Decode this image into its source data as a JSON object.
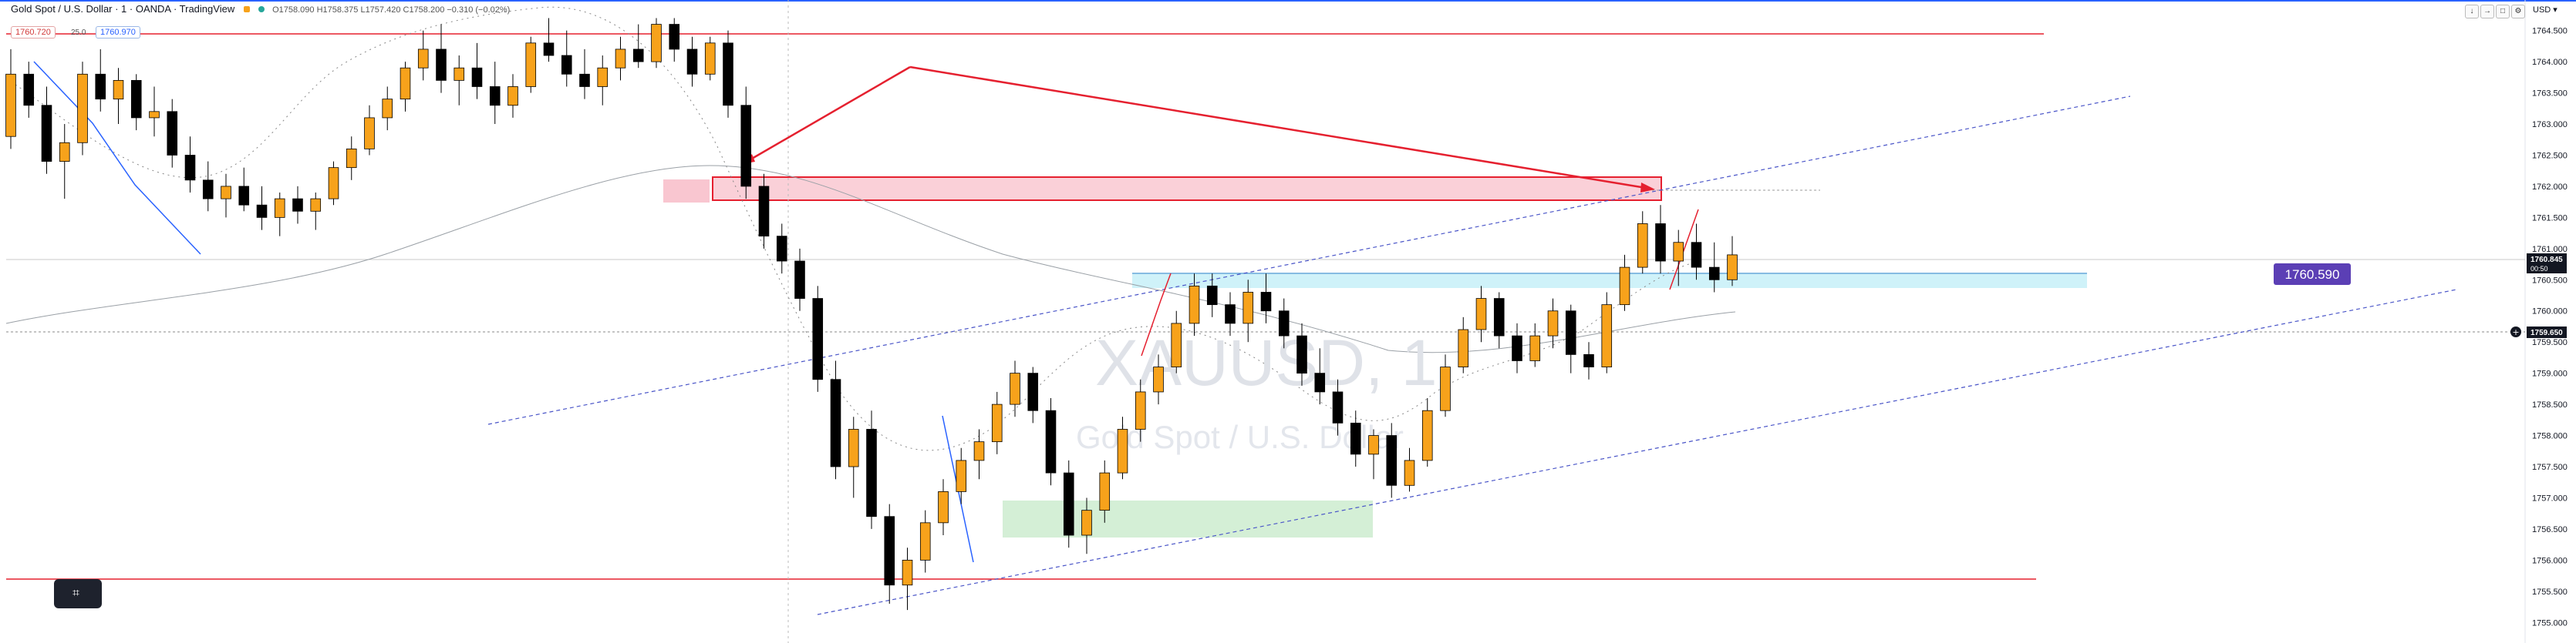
{
  "header": {
    "symbol": "Gold Spot / U.S. Dollar · 1 · OANDA · TradingView",
    "ohlc": "O1758.090 H1758.375 L1757.420 C1758.200 −0.310 (−0.02%)"
  },
  "trade_panel": {
    "sell_price": "1760.720",
    "spread": "25.0",
    "buy_price": "1760.970"
  },
  "currency": "USD",
  "watermark": {
    "ticker": "XAUUSD, 1",
    "name": "Gold Spot / U.S. Dollar"
  },
  "price_labels": {
    "current_price": "1760.845",
    "countdown": "00:50",
    "crosshair_price": "1759.650",
    "level_label": "1760.590"
  },
  "colors": {
    "bull_candle": "#f7a21b",
    "bear_candle": "#000000",
    "resistance": "#e5202f",
    "support_zone": "#b9eef7",
    "demand_zone": "#c8eccb",
    "supply_fill": "#f9c6d0",
    "channel": "#4a55c8",
    "label_bg": "#5b3fb5"
  },
  "chart_data": {
    "type": "candlestick",
    "yaxis": {
      "ticks": [
        "1764.500",
        "1764.000",
        "1763.500",
        "1763.000",
        "1762.500",
        "1762.000",
        "1761.500",
        "1761.000",
        "1760.500",
        "1760.000",
        "1759.500",
        "1759.000",
        "1758.500",
        "1758.000",
        "1757.500",
        "1757.000",
        "1756.500",
        "1756.000",
        "1755.500",
        "1755.000"
      ],
      "min": 1754.88,
      "max": 1764.78
    },
    "candles": [
      [
        1762.8,
        1764.2,
        1762.6,
        1763.8
      ],
      [
        1763.8,
        1764.0,
        1763.1,
        1763.3
      ],
      [
        1763.3,
        1763.6,
        1762.2,
        1762.4
      ],
      [
        1762.4,
        1763.0,
        1761.8,
        1762.7
      ],
      [
        1762.7,
        1764.0,
        1762.5,
        1763.8
      ],
      [
        1763.8,
        1764.2,
        1763.2,
        1763.4
      ],
      [
        1763.4,
        1763.9,
        1763.0,
        1763.7
      ],
      [
        1763.7,
        1763.8,
        1762.9,
        1763.1
      ],
      [
        1763.1,
        1763.6,
        1762.8,
        1763.2
      ],
      [
        1763.2,
        1763.4,
        1762.3,
        1762.5
      ],
      [
        1762.5,
        1762.8,
        1761.9,
        1762.1
      ],
      [
        1762.1,
        1762.4,
        1761.6,
        1761.8
      ],
      [
        1761.8,
        1762.2,
        1761.5,
        1762.0
      ],
      [
        1762.0,
        1762.3,
        1761.6,
        1761.7
      ],
      [
        1761.7,
        1762.0,
        1761.3,
        1761.5
      ],
      [
        1761.5,
        1761.9,
        1761.2,
        1761.8
      ],
      [
        1761.8,
        1762.0,
        1761.4,
        1761.6
      ],
      [
        1761.6,
        1761.9,
        1761.3,
        1761.8
      ],
      [
        1761.8,
        1762.4,
        1761.7,
        1762.3
      ],
      [
        1762.3,
        1762.8,
        1762.1,
        1762.6
      ],
      [
        1762.6,
        1763.3,
        1762.5,
        1763.1
      ],
      [
        1763.1,
        1763.6,
        1762.9,
        1763.4
      ],
      [
        1763.4,
        1764.0,
        1763.2,
        1763.9
      ],
      [
        1763.9,
        1764.5,
        1763.7,
        1764.2
      ],
      [
        1764.2,
        1764.6,
        1763.5,
        1763.7
      ],
      [
        1763.7,
        1764.1,
        1763.3,
        1763.9
      ],
      [
        1763.9,
        1764.3,
        1763.4,
        1763.6
      ],
      [
        1763.6,
        1764.0,
        1763.0,
        1763.3
      ],
      [
        1763.3,
        1763.8,
        1763.1,
        1763.6
      ],
      [
        1763.6,
        1764.4,
        1763.5,
        1764.3
      ],
      [
        1764.3,
        1764.7,
        1764.0,
        1764.1
      ],
      [
        1764.1,
        1764.5,
        1763.6,
        1763.8
      ],
      [
        1763.8,
        1764.2,
        1763.4,
        1763.6
      ],
      [
        1763.6,
        1764.1,
        1763.3,
        1763.9
      ],
      [
        1763.9,
        1764.4,
        1763.7,
        1764.2
      ],
      [
        1764.2,
        1764.6,
        1763.9,
        1764.0
      ],
      [
        1764.0,
        1764.7,
        1763.9,
        1764.6
      ],
      [
        1764.6,
        1764.7,
        1764.0,
        1764.2
      ],
      [
        1764.2,
        1764.4,
        1763.6,
        1763.8
      ],
      [
        1763.8,
        1764.4,
        1763.7,
        1764.3
      ],
      [
        1764.3,
        1764.5,
        1763.1,
        1763.3
      ],
      [
        1763.3,
        1763.6,
        1761.8,
        1762.0
      ],
      [
        1762.0,
        1762.2,
        1761.0,
        1761.2
      ],
      [
        1761.2,
        1761.4,
        1760.6,
        1760.8
      ],
      [
        1760.8,
        1761.0,
        1760.0,
        1760.2
      ],
      [
        1760.2,
        1760.4,
        1758.7,
        1758.9
      ],
      [
        1758.9,
        1759.2,
        1757.3,
        1757.5
      ],
      [
        1757.5,
        1758.3,
        1757.0,
        1758.1
      ],
      [
        1758.1,
        1758.4,
        1756.5,
        1756.7
      ],
      [
        1756.7,
        1756.9,
        1755.3,
        1755.6
      ],
      [
        1755.6,
        1756.2,
        1755.2,
        1756.0
      ],
      [
        1756.0,
        1756.8,
        1755.8,
        1756.6
      ],
      [
        1756.6,
        1757.3,
        1756.4,
        1757.1
      ],
      [
        1757.1,
        1757.8,
        1756.9,
        1757.6
      ],
      [
        1757.6,
        1758.1,
        1757.3,
        1757.9
      ],
      [
        1757.9,
        1758.7,
        1757.7,
        1758.5
      ],
      [
        1758.5,
        1759.2,
        1758.3,
        1759.0
      ],
      [
        1759.0,
        1759.1,
        1758.2,
        1758.4
      ],
      [
        1758.4,
        1758.6,
        1757.2,
        1757.4
      ],
      [
        1757.4,
        1757.6,
        1756.2,
        1756.4
      ],
      [
        1756.4,
        1757.0,
        1756.1,
        1756.8
      ],
      [
        1756.8,
        1757.6,
        1756.6,
        1757.4
      ],
      [
        1757.4,
        1758.3,
        1757.3,
        1758.1
      ],
      [
        1758.1,
        1758.9,
        1757.9,
        1758.7
      ],
      [
        1758.7,
        1759.3,
        1758.5,
        1759.1
      ],
      [
        1759.1,
        1760.0,
        1759.0,
        1759.8
      ],
      [
        1759.8,
        1760.6,
        1759.6,
        1760.4
      ],
      [
        1760.4,
        1760.6,
        1759.9,
        1760.1
      ],
      [
        1760.1,
        1760.3,
        1759.6,
        1759.8
      ],
      [
        1759.8,
        1760.5,
        1759.5,
        1760.3
      ],
      [
        1760.3,
        1760.6,
        1759.8,
        1760.0
      ],
      [
        1760.0,
        1760.2,
        1759.4,
        1759.6
      ],
      [
        1759.6,
        1759.8,
        1758.8,
        1759.0
      ],
      [
        1759.0,
        1759.4,
        1758.5,
        1758.7
      ],
      [
        1758.7,
        1758.9,
        1758.0,
        1758.2
      ],
      [
        1758.2,
        1758.4,
        1757.5,
        1757.7
      ],
      [
        1757.7,
        1758.1,
        1757.3,
        1758.0
      ],
      [
        1758.0,
        1758.2,
        1757.0,
        1757.2
      ],
      [
        1757.2,
        1757.8,
        1757.1,
        1757.6
      ],
      [
        1757.6,
        1758.6,
        1757.5,
        1758.4
      ],
      [
        1758.4,
        1759.3,
        1758.3,
        1759.1
      ],
      [
        1759.1,
        1759.9,
        1759.0,
        1759.7
      ],
      [
        1759.7,
        1760.4,
        1759.5,
        1760.2
      ],
      [
        1760.2,
        1760.3,
        1759.4,
        1759.6
      ],
      [
        1759.6,
        1759.8,
        1759.0,
        1759.2
      ],
      [
        1759.2,
        1759.8,
        1759.1,
        1759.6
      ],
      [
        1759.6,
        1760.2,
        1759.4,
        1760.0
      ],
      [
        1760.0,
        1760.1,
        1759.0,
        1759.3
      ],
      [
        1759.3,
        1759.5,
        1758.9,
        1759.1
      ],
      [
        1759.1,
        1760.3,
        1759.0,
        1760.1
      ],
      [
        1760.1,
        1760.9,
        1760.0,
        1760.7
      ],
      [
        1760.7,
        1761.6,
        1760.6,
        1761.4
      ],
      [
        1761.4,
        1761.7,
        1760.6,
        1760.8
      ],
      [
        1760.8,
        1761.3,
        1760.4,
        1761.1
      ],
      [
        1761.1,
        1761.4,
        1760.5,
        1760.7
      ],
      [
        1760.7,
        1761.1,
        1760.3,
        1760.5
      ],
      [
        1760.5,
        1761.2,
        1760.4,
        1760.9
      ]
    ]
  }
}
